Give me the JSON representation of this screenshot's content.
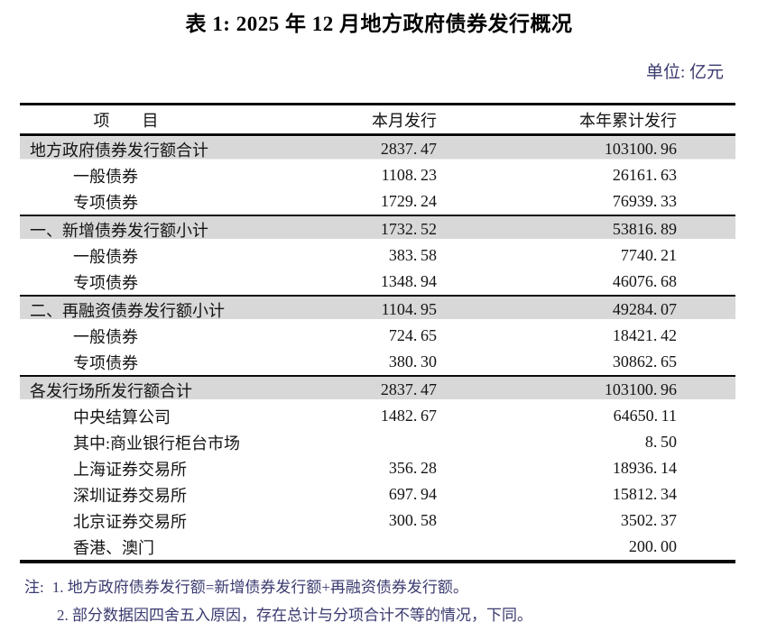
{
  "title": "表 1: 2025 年 12 月地方政府债券发行概况",
  "unit_label": "单位: 亿元",
  "table": {
    "columns": [
      "项　　目",
      "本月发行",
      "本年累计发行"
    ],
    "rows": [
      {
        "label": "地方政府债券发行额合计",
        "monthly": "2837.47",
        "cumulative": "103100.96",
        "level": "main",
        "shaded": true,
        "section_line": false
      },
      {
        "label": "一般债券",
        "monthly": "1108.23",
        "cumulative": "26161.63",
        "level": "sub",
        "shaded": false,
        "section_line": false
      },
      {
        "label": "专项债券",
        "monthly": "1729.24",
        "cumulative": "76939.33",
        "level": "sub",
        "shaded": false,
        "section_line": false
      },
      {
        "label": "一、新增债券发行额小计",
        "monthly": "1732.52",
        "cumulative": "53816.89",
        "level": "main",
        "shaded": true,
        "section_line": true
      },
      {
        "label": "一般债券",
        "monthly": "383.58",
        "cumulative": "7740.21",
        "level": "sub",
        "shaded": false,
        "section_line": false
      },
      {
        "label": "专项债券",
        "monthly": "1348.94",
        "cumulative": "46076.68",
        "level": "sub",
        "shaded": false,
        "section_line": false
      },
      {
        "label": "二、再融资债券发行额小计",
        "monthly": "1104.95",
        "cumulative": "49284.07",
        "level": "main",
        "shaded": true,
        "section_line": true
      },
      {
        "label": "一般债券",
        "monthly": "724.65",
        "cumulative": "18421.42",
        "level": "sub",
        "shaded": false,
        "section_line": false
      },
      {
        "label": "专项债券",
        "monthly": "380.30",
        "cumulative": "30862.65",
        "level": "sub",
        "shaded": false,
        "section_line": false
      },
      {
        "label": "各发行场所发行额合计",
        "monthly": "2837.47",
        "cumulative": "103100.96",
        "level": "main",
        "shaded": true,
        "section_line": true
      },
      {
        "label": "中央结算公司",
        "monthly": "1482.67",
        "cumulative": "64650.11",
        "level": "sub",
        "shaded": false,
        "section_line": false
      },
      {
        "label": "其中:商业银行柜台市场",
        "monthly": "",
        "cumulative": "8.50",
        "level": "sub",
        "shaded": false,
        "section_line": false
      },
      {
        "label": "上海证券交易所",
        "monthly": "356.28",
        "cumulative": "18936.14",
        "level": "sub",
        "shaded": false,
        "section_line": false
      },
      {
        "label": "深圳证券交易所",
        "monthly": "697.94",
        "cumulative": "15812.34",
        "level": "sub",
        "shaded": false,
        "section_line": false
      },
      {
        "label": "北京证券交易所",
        "monthly": "300.58",
        "cumulative": "3502.37",
        "level": "sub",
        "shaded": false,
        "section_line": false
      },
      {
        "label": "香港、澳门",
        "monthly": "",
        "cumulative": "200.00",
        "level": "sub",
        "shaded": false,
        "section_line": false
      }
    ]
  },
  "notes": {
    "prefix": "注:",
    "items": [
      "1. 地方政府债券发行额=新增债券发行额+再融资债券发行额。",
      "2. 部分数据因四舍五入原因，存在总计与分项合计不等的情况，下同。"
    ]
  },
  "colors": {
    "shaded_row": "#d8d8d8",
    "accent_text": "#3a3a70",
    "border": "#0a0a0a"
  }
}
